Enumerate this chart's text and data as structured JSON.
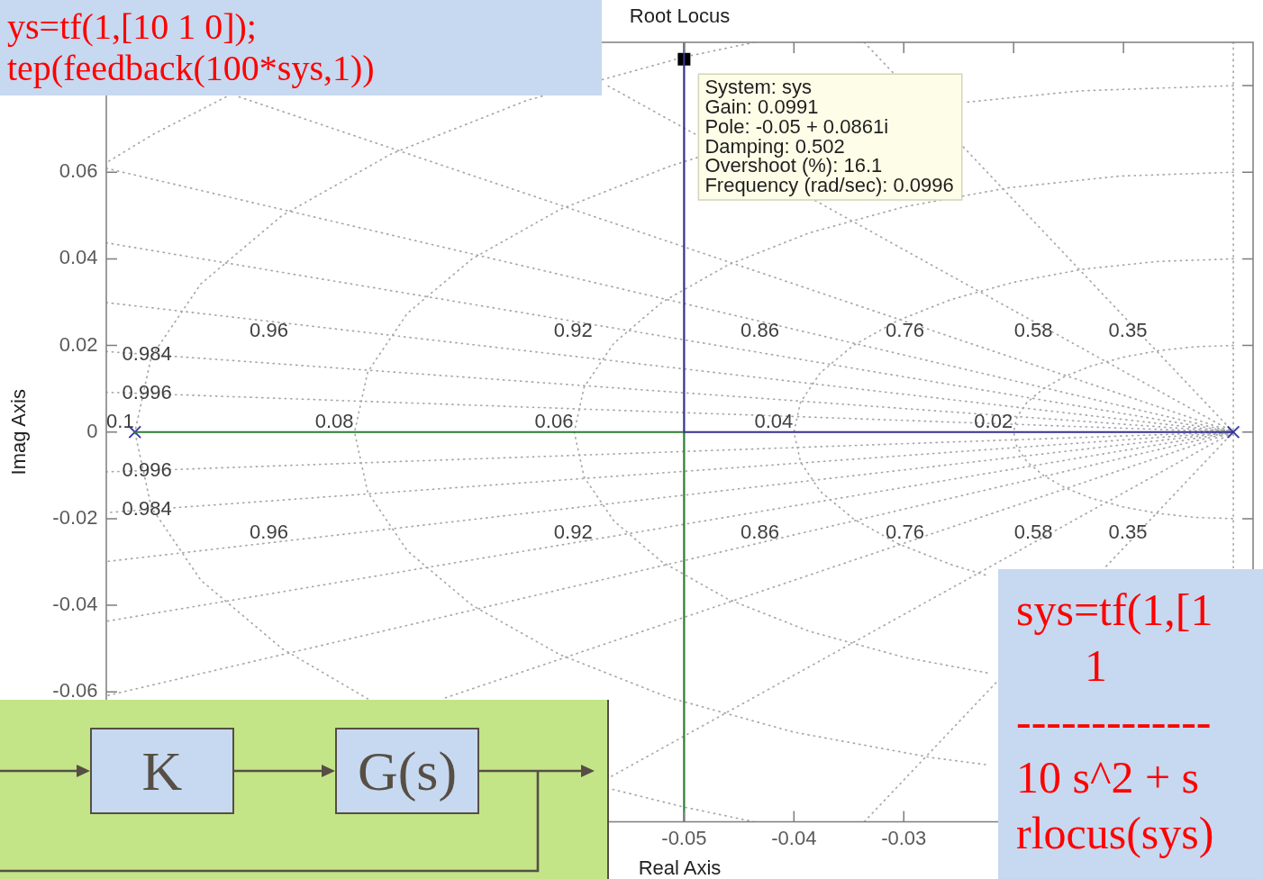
{
  "chart_data": {
    "type": "line",
    "title": "Root Locus",
    "xlabel": "Real Axis",
    "ylabel": "Imag Axis",
    "xlim": [
      -0.1026,
      0.0018
    ],
    "ylim": [
      -0.09,
      0.09
    ],
    "xticks": [
      -0.05,
      -0.04,
      -0.03,
      {
        "value": -0.02,
        "label": null
      },
      {
        "value": -0.01,
        "label": null
      }
    ],
    "yticks": [
      -0.06,
      -0.04,
      -0.02,
      0,
      0.02,
      0.04,
      0.06,
      {
        "value": 0.08,
        "label": null
      }
    ],
    "series": [
      {
        "type": "line",
        "color": "#33338f",
        "x": [
          0,
          -0.05,
          -0.05
        ],
        "values": [
          0,
          0,
          0.09
        ]
      },
      {
        "type": "line",
        "color": "#2e7d32",
        "x": [
          -0.1,
          -0.05,
          -0.05
        ],
        "values": [
          0,
          0,
          -0.09
        ]
      },
      {
        "type": "scatter",
        "marker": "cross",
        "color": "#3a3aa8",
        "x": [
          0,
          -0.1
        ],
        "values": [
          0,
          0
        ]
      },
      {
        "type": "scatter",
        "marker": "square",
        "color": "#000000",
        "x": [
          -0.05
        ],
        "values": [
          0.0861
        ]
      },
      {
        "type": "line",
        "color": "#a8a8a8",
        "line_style": "dotted",
        "x": [
          -0.0336,
          0,
          -0.0336
        ],
        "values": [
          0.09,
          0,
          -0.09
        ]
      },
      {
        "type": "line",
        "color": "#a8a8a8",
        "line_style": "dotted",
        "x": [
          -0.0569,
          0,
          -0.0569
        ],
        "values": [
          0.0799,
          0,
          -0.0799
        ]
      },
      {
        "type": "line",
        "color": "#a8a8a8",
        "line_style": "dotted",
        "x": [
          -0.0905,
          0,
          -0.072
        ],
        "values": [
          0.0774,
          0,
          -0.0616
        ]
      },
      {
        "type": "line",
        "color": "#a8a8a8",
        "line_style": "dotted",
        "x": [
          -0.1026,
          0,
          -0.1026
        ],
        "values": [
          0.0609,
          0,
          -0.0609
        ]
      },
      {
        "type": "line",
        "color": "#a8a8a8",
        "line_style": "dotted",
        "x": [
          -0.1026,
          0,
          -0.1026
        ],
        "values": [
          0.0437,
          0,
          -0.0437
        ]
      },
      {
        "type": "line",
        "color": "#a8a8a8",
        "line_style": "dotted",
        "x": [
          -0.1026,
          0,
          -0.1026
        ],
        "values": [
          0.0299,
          0,
          -0.0299
        ]
      },
      {
        "type": "line",
        "color": "#a8a8a8",
        "line_style": "dotted",
        "x": [
          -0.1026,
          0,
          -0.1026
        ],
        "values": [
          0.0186,
          0,
          -0.0186
        ]
      },
      {
        "type": "line",
        "color": "#a8a8a8",
        "line_style": "dotted",
        "x": [
          -0.1026,
          0,
          -0.1026
        ],
        "values": [
          0.0092,
          0,
          -0.0092
        ]
      },
      {
        "type": "line",
        "color": "#a8a8a8",
        "line_style": "dotted",
        "x": [
          0,
          0
        ],
        "values": [
          0.09,
          -0.0313
        ]
      },
      {
        "type": "line",
        "color": "#a8a8a8",
        "line_style": "dotted",
        "x": [
          0,
          -0.0035,
          -0.0068,
          -0.01,
          -0.0129,
          -0.0153,
          -0.0173,
          -0.0188,
          -0.0197,
          -0.02,
          -0.0197,
          -0.0188,
          -0.0173,
          -0.0153,
          -0.0129,
          -0.01,
          -0.0068,
          -0.0035,
          0
        ],
        "values": [
          0.02,
          0.0197,
          0.0188,
          0.0173,
          0.0153,
          0.0129,
          0.01,
          0.0068,
          0.0035,
          0,
          -0.0035,
          -0.0068,
          -0.01,
          -0.0129,
          -0.0153,
          -0.0173,
          -0.0188,
          -0.0197,
          -0.02
        ]
      },
      {
        "type": "line",
        "color": "#a8a8a8",
        "line_style": "dotted",
        "x": [
          0,
          -0.0069,
          -0.0137,
          -0.02,
          -0.0257,
          -0.0306,
          -0.0346,
          -0.0376,
          -0.0394,
          -0.04,
          -0.0394,
          -0.0376,
          -0.0346,
          -0.0306,
          -0.0257,
          -0.0222
        ],
        "values": [
          0.04,
          0.0394,
          0.0376,
          0.0346,
          0.0306,
          0.0257,
          0.02,
          0.0137,
          0.0069,
          0,
          -0.0069,
          -0.0137,
          -0.02,
          -0.0257,
          -0.0306,
          -0.0333
        ]
      },
      {
        "type": "line",
        "color": "#a8a8a8",
        "line_style": "dotted",
        "x": [
          0,
          -0.0104,
          -0.0205,
          -0.03,
          -0.0386,
          -0.046,
          -0.052,
          -0.0564,
          -0.0591,
          -0.06,
          -0.0591,
          -0.0564,
          -0.052,
          -0.046,
          -0.0386,
          -0.03,
          -0.0222
        ],
        "values": [
          0.06,
          0.0591,
          0.0564,
          0.052,
          0.046,
          0.0386,
          0.03,
          0.0205,
          0.0104,
          0,
          -0.0104,
          -0.0205,
          -0.03,
          -0.0386,
          -0.046,
          -0.052,
          -0.0557
        ]
      },
      {
        "type": "line",
        "color": "#a8a8a8",
        "line_style": "dotted",
        "x": [
          0,
          -0.0139,
          -0.0246,
          -0.036,
          -0.0488,
          -0.0514,
          -0.0613,
          -0.0693,
          -0.0752,
          -0.0788,
          -0.08,
          -0.0788,
          -0.0752,
          -0.0693,
          -0.0613,
          -0.0514,
          -0.04,
          -0.0274,
          -0.0222
        ],
        "values": [
          0.08,
          0.0788,
          0.0761,
          null,
          0.0634,
          0.0613,
          0.0514,
          0.04,
          0.0274,
          0.0139,
          0,
          -0.0139,
          -0.0274,
          -0.04,
          -0.0514,
          -0.0613,
          -0.0693,
          -0.0752,
          -0.0769
        ]
      },
      {
        "type": "line",
        "color": "#a8a8a8",
        "line_style": "dotted",
        "x": [
          -0.0436,
          -0.05,
          -0.0643,
          -0.0766,
          -0.0866,
          -0.094,
          -0.0985,
          -0.1,
          -0.0985,
          -0.094,
          -0.0866,
          -0.0788,
          -0.068,
          -0.057,
          -0.05,
          -0.0436
        ],
        "values": [
          0.09,
          0.0866,
          0.0766,
          0.0643,
          0.05,
          0.0342,
          0.0174,
          0,
          -0.0174,
          -0.0342,
          -0.05,
          -0.0616,
          null,
          -0.0822,
          -0.0866,
          -0.09
        ]
      },
      {
        "type": "line",
        "color": "#a8a8a8",
        "line_style": "dotted",
        "x": [
          -0.0917,
          -0.0983,
          -0.1026
        ],
        "values": [
          0.0774,
          0.0688,
          0.0622
        ]
      }
    ],
    "annotations": [
      {
        "text": "System: sys\nGain: 0.0991\nPole: -0.05 + 0.0861i\nDamping: 0.502\nOvershoot (%): 16.1\nFrequency (rad/sec): 0.0996",
        "x": -0.05,
        "y": 0.0861
      },
      {
        "text": "0.96",
        "x": -0.0878,
        "y": 0.0256
      },
      {
        "text": "0.92",
        "x": -0.0601,
        "y": 0.0256
      },
      {
        "text": "0.86",
        "x": -0.0431,
        "y": 0.0256
      },
      {
        "text": "0.76",
        "x": -0.0299,
        "y": 0.0256
      },
      {
        "text": "0.58",
        "x": -0.0182,
        "y": 0.0256
      },
      {
        "text": "0.35",
        "x": -0.0096,
        "y": 0.0256
      },
      {
        "text": "0.984",
        "x": -0.0989,
        "y": 0.0179
      },
      {
        "text": "0.996",
        "x": -0.0989,
        "y": 0.0089
      },
      {
        "text": "0.996",
        "x": -0.0989,
        "y": -0.0089
      },
      {
        "text": "0.984",
        "x": -0.0989,
        "y": -0.0179
      },
      {
        "text": "0.96",
        "x": -0.0878,
        "y": -0.0256
      },
      {
        "text": "0.92",
        "x": -0.0601,
        "y": -0.0256
      },
      {
        "text": "0.86",
        "x": -0.0431,
        "y": -0.0256
      },
      {
        "text": "0.76",
        "x": -0.0299,
        "y": -0.0256
      },
      {
        "text": "0.58",
        "x": -0.0182,
        "y": -0.0256
      },
      {
        "text": "0.35",
        "x": -0.0096,
        "y": -0.0256
      },
      {
        "text": "0.1",
        "x": -0.1,
        "y": 0
      },
      {
        "text": "0.08",
        "x": -0.08,
        "y": 0
      },
      {
        "text": "0.06",
        "x": -0.06,
        "y": 0
      },
      {
        "text": "0.04",
        "x": -0.04,
        "y": 0
      },
      {
        "text": "0.02",
        "x": -0.02,
        "y": 0
      },
      "ys=tf(1,[10 1 0]);\ntep(feedback(100*sys,1))",
      "sys=tf(1,[1\n1\n-------------\n10 s^2 + s\nrlocus(sys)",
      "K",
      "G(s)"
    ]
  }
}
